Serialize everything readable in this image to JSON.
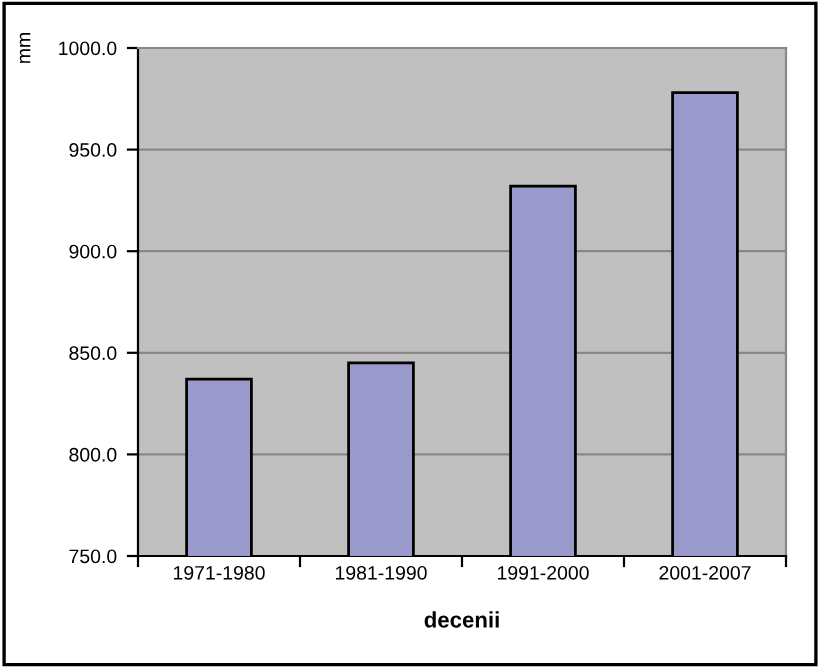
{
  "chart_data": {
    "type": "bar",
    "xlabel": "decenii",
    "ylabel": "mm",
    "categories": [
      "1971-1980",
      "1981-1990",
      "1991-2000",
      "2001-2007"
    ],
    "values": [
      837,
      845,
      932,
      978
    ],
    "color": "#9999cc",
    "ylim": [
      750,
      1000
    ],
    "yticks": [
      {
        "value": 750,
        "label": "750.0"
      },
      {
        "value": 800,
        "label": "800.0"
      },
      {
        "value": 850,
        "label": "850.0"
      },
      {
        "value": 900,
        "label": "900.0"
      },
      {
        "value": 950,
        "label": "950.0"
      },
      {
        "value": 1000,
        "label": "1000.0"
      }
    ],
    "grid": "y"
  }
}
